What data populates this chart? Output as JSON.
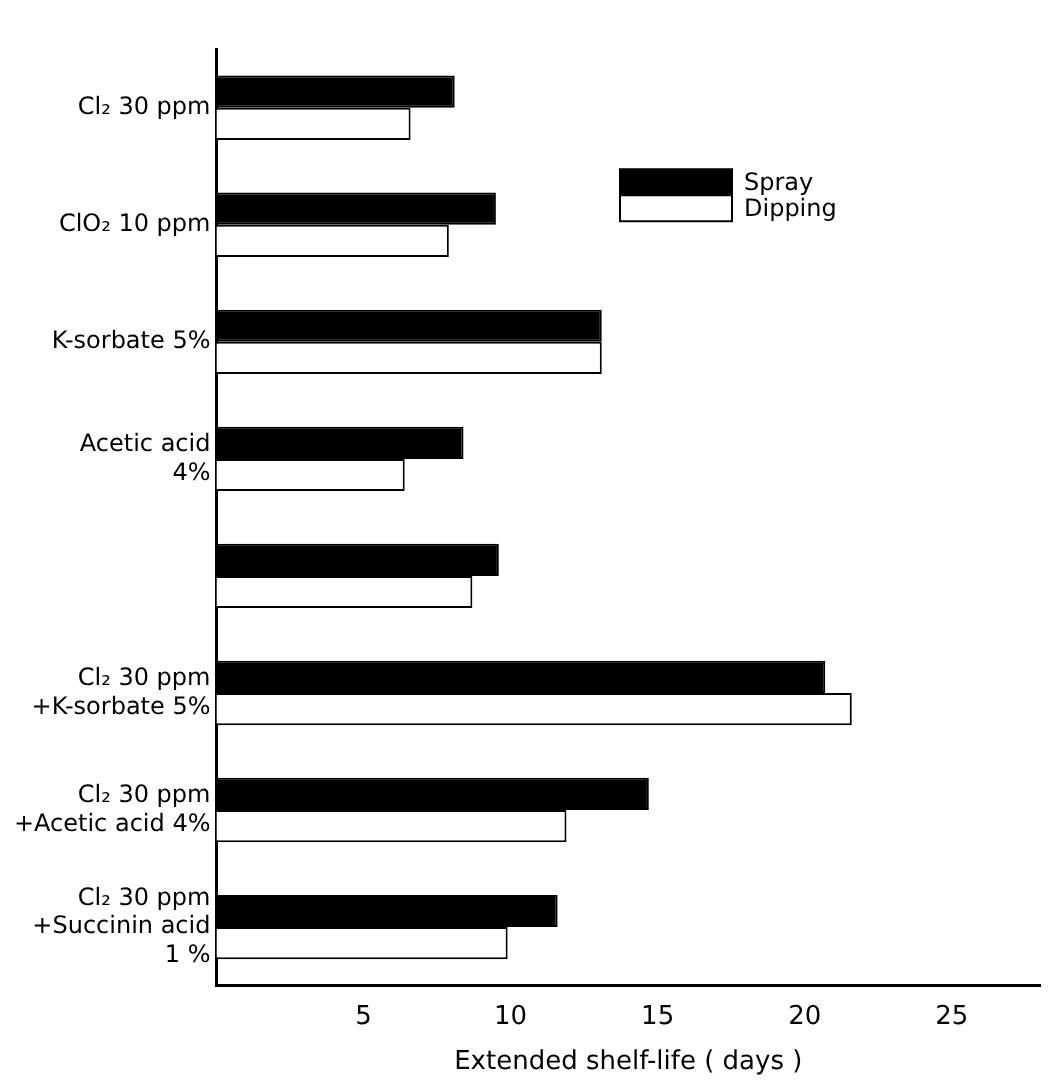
{
  "chart_data": {
    "type": "bar",
    "orientation": "horizontal",
    "xlabel": "Extended shelf-life ( days )",
    "categories": [
      "Cl₂ 30 ppm",
      "ClO₂ 10 ppm",
      "K-sorbate 5%",
      "Acetic acid\n4%",
      null,
      "Cl₂ 30 ppm\n+K-sorbate 5%",
      "Cl₂ 30 ppm\n+Acetic acid 4%",
      "Cl₂ 30 ppm\n+Succinin acid\n1 %"
    ],
    "series": [
      {
        "name": "Spray",
        "color": "#000000",
        "values": [
          8.1,
          9.5,
          13.1,
          8.4,
          9.6,
          20.7,
          14.7,
          11.6
        ]
      },
      {
        "name": "Dipping",
        "color": "#ffffff",
        "values": [
          6.6,
          7.9,
          13.1,
          6.4,
          8.7,
          21.6,
          11.9,
          9.9
        ]
      }
    ],
    "xlim": [
      0,
      28
    ],
    "xticks": [
      5,
      10,
      15,
      20,
      25
    ],
    "grid": false,
    "legend": "top right"
  }
}
